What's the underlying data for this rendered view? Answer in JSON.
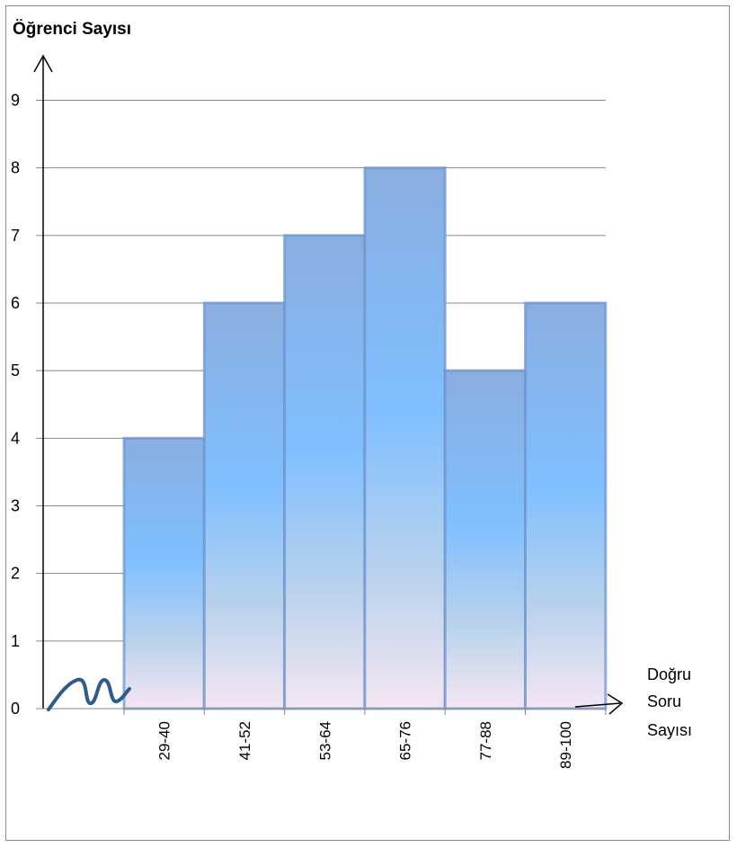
{
  "chart_data": {
    "type": "bar",
    "ylabel": "Öğrenci Sayısı",
    "xlabel_lines": [
      "Doğru",
      "Soru",
      "Sayısı"
    ],
    "categories": [
      "29-40",
      "41-52",
      "53-64",
      "65-76",
      "77-88",
      "89-100"
    ],
    "values": [
      4,
      6,
      7,
      8,
      5,
      6
    ],
    "ylim": [
      0,
      9
    ],
    "yticks": [
      "0",
      "1",
      "2",
      "3",
      "4",
      "5",
      "6",
      "7",
      "8",
      "9"
    ],
    "grid": true,
    "axis_break": true,
    "colors": {
      "bar_fill_mid": "#7fbfff",
      "bar_fill_top": "#8aaee0",
      "bar_fill_bottom": "#f5e6f2",
      "bar_edge": "#6f95cf",
      "gridline": "#888888",
      "break_mark": "#2f5b8c"
    }
  }
}
